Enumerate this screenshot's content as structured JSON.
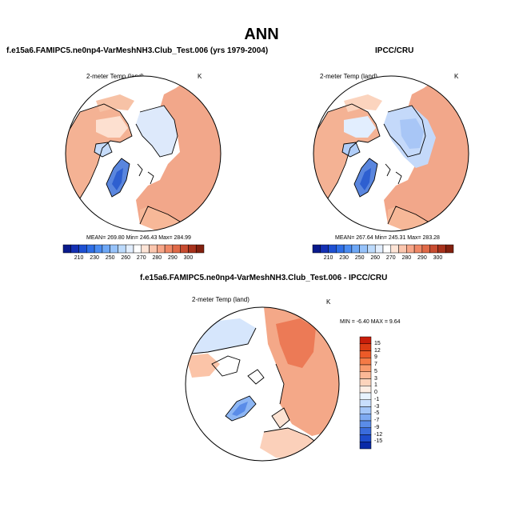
{
  "title": "ANN",
  "panel_left": {
    "header": "f.e15a6.FAMIPC5.ne0np4-VarMeshNH3.Club_Test.006 (yrs 1979-2004)",
    "field": "2-meter Temp (land)",
    "units": "K",
    "stats": "MEAN= 269.80   Min= 246.43   Max= 284.99"
  },
  "panel_right": {
    "header": "IPCC/CRU",
    "field": "2-meter Temp (land)",
    "units": "K",
    "stats": "MEAN= 267.64   Min= 245.31   Max= 283.28"
  },
  "panel_diff": {
    "header": "f.e15a6.FAMIPC5.ne0np4-VarMeshNH3.Club_Test.006 - IPCC/CRU",
    "field": "2-meter Temp (land)",
    "units": "K",
    "minmax": "MIN =  -6.40 MAX =   9.64"
  },
  "colorbar_top": {
    "colors": [
      "#0a1a8c",
      "#1430b4",
      "#1e50d2",
      "#2e6ee6",
      "#4a8cf2",
      "#6ea8f6",
      "#96c2fa",
      "#bcdafc",
      "#e2eefe",
      "#ffffff",
      "#fde4d6",
      "#fbc6ae",
      "#f7a688",
      "#f08866",
      "#e06a48",
      "#c84c30",
      "#a8321c",
      "#82200e"
    ],
    "labels": [
      "210",
      "230",
      "250",
      "260",
      "270",
      "280",
      "290",
      "300"
    ]
  },
  "colorbar_diff": {
    "colors": [
      "#c81e0a",
      "#dc3c14",
      "#ec5a28",
      "#f47a46",
      "#f89a6c",
      "#fbb896",
      "#fdd4bc",
      "#feeee4",
      "#e8f2fe",
      "#c8defc",
      "#a4c6f8",
      "#7eaaf2",
      "#5a8ce8",
      "#3a6cdc",
      "#1e4ccc",
      "#0a2aa8"
    ],
    "labels": [
      "15",
      "12",
      "9",
      "7",
      "5",
      "3",
      "1",
      "0",
      "-1",
      "-3",
      "-5",
      "-7",
      "-9",
      "-12",
      "-15"
    ]
  }
}
